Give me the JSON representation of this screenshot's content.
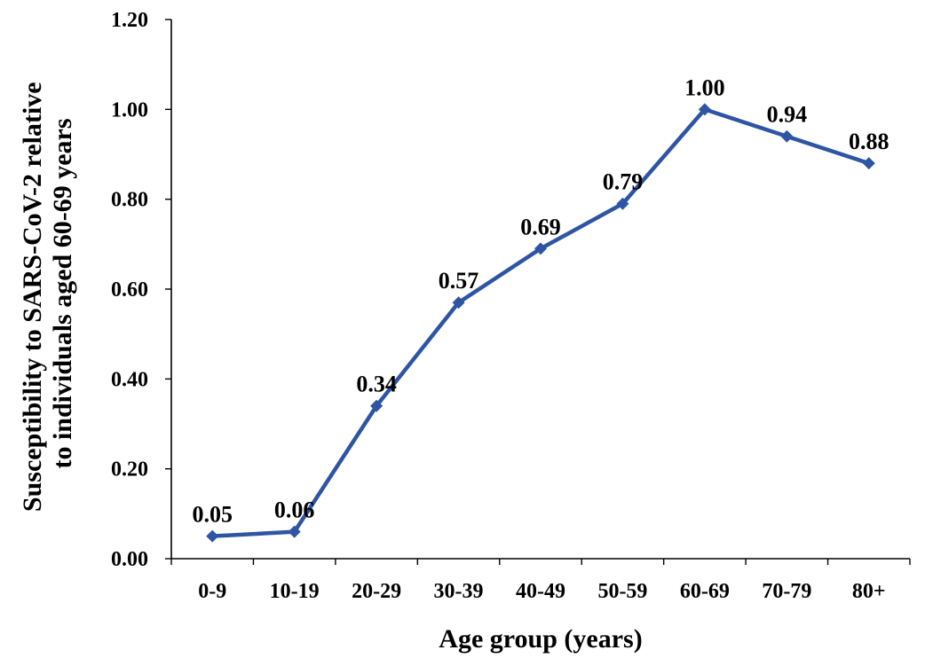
{
  "chart_data": {
    "type": "line",
    "title": "",
    "xlabel": "Age group (years)",
    "ylabel_lines": [
      "Susceptibility to SARS-CoV-2 relative",
      "to individuals  aged 60-69 years"
    ],
    "categories": [
      "0-9",
      "10-19",
      "20-29",
      "30-39",
      "40-49",
      "50-59",
      "60-69",
      "70-79",
      "80+"
    ],
    "values": [
      0.05,
      0.06,
      0.34,
      0.57,
      0.69,
      0.79,
      1.0,
      0.94,
      0.88
    ],
    "value_labels": [
      "0.05",
      "0.06",
      "0.34",
      "0.57",
      "0.69",
      "0.79",
      "1.00",
      "0.94",
      "0.88"
    ],
    "ylim": [
      0,
      1.2
    ],
    "yticks": [
      "0.00",
      "0.20",
      "0.40",
      "0.60",
      "0.80",
      "1.00",
      "1.20"
    ],
    "grid": false,
    "legend": "none",
    "series_color": "#2E55A4"
  }
}
